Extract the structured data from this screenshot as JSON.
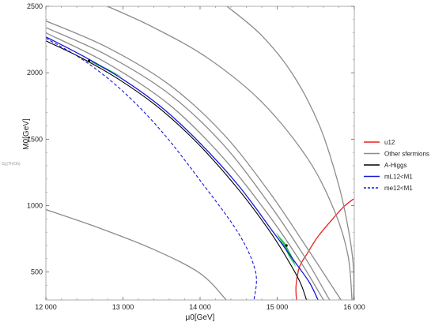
{
  "chart_data": {
    "type": "line",
    "xlabel": "μ0[GeV]",
    "ylabel": "M0[GeV]",
    "side_note": "Ωχ(Th/Ob)",
    "xlim": [
      12000,
      16000
    ],
    "ylim": [
      290,
      2500
    ],
    "xticks": [
      12000,
      13000,
      14000,
      15000,
      16000
    ],
    "xtick_labels": [
      "12 000",
      "13 000",
      "14 000",
      "15 000",
      "16 000"
    ],
    "yticks": [
      500,
      1000,
      1500,
      2000,
      2500
    ],
    "ytick_labels": [
      "500",
      "1000",
      "1500",
      "2000",
      "2500"
    ],
    "grid": false,
    "legend_position": "right",
    "legend": [
      {
        "label": "u12",
        "color": "#e8201c",
        "dash": false
      },
      {
        "label": "Other sfermions",
        "color": "#8c8c8c",
        "dash": false
      },
      {
        "label": "A-Higgs",
        "color": "#000000",
        "dash": false
      },
      {
        "label": "mL12<M1",
        "color": "#1818d8",
        "dash": false
      },
      {
        "label": "me12<M1",
        "color": "#1818d8",
        "dash": true
      }
    ],
    "series": [
      {
        "name": "u12",
        "color": "#e8201c",
        "dash": false,
        "width": 1.3,
        "points": [
          [
            15250,
            290
          ],
          [
            15245,
            400
          ],
          [
            15290,
            540
          ],
          [
            15390,
            640
          ],
          [
            15520,
            760
          ],
          [
            15690,
            880
          ],
          [
            15860,
            990
          ],
          [
            15990,
            1050
          ]
        ]
      },
      {
        "name": "Other sfermions",
        "color": "#8c8c8c",
        "dash": false,
        "width": 1.3,
        "points": [
          [
            12800,
            2500
          ],
          [
            13400,
            2340
          ],
          [
            14100,
            2110
          ],
          [
            14800,
            1780
          ],
          [
            15400,
            1350
          ],
          [
            15750,
            950
          ],
          [
            15920,
            620
          ],
          [
            15970,
            290
          ]
        ]
      },
      {
        "name": "Other sfermions",
        "color": "#8c8c8c",
        "dash": false,
        "width": 1.3,
        "points": [
          [
            14350,
            2500
          ],
          [
            14800,
            2280
          ],
          [
            15200,
            1990
          ],
          [
            15550,
            1600
          ],
          [
            15800,
            1150
          ],
          [
            15930,
            800
          ],
          [
            15990,
            530
          ],
          [
            15990,
            290
          ]
        ]
      },
      {
        "name": "Other sfermions",
        "color": "#8c8c8c",
        "dash": false,
        "width": 1.3,
        "points": [
          [
            12000,
            2390
          ],
          [
            12800,
            2190
          ],
          [
            13600,
            1910
          ],
          [
            14300,
            1540
          ],
          [
            14900,
            1100
          ],
          [
            15400,
            670
          ],
          [
            15760,
            350
          ],
          [
            15830,
            290
          ]
        ]
      },
      {
        "name": "Other sfermions",
        "color": "#8c8c8c",
        "dash": false,
        "width": 1.3,
        "points": [
          [
            12000,
            2340
          ],
          [
            12800,
            2130
          ],
          [
            13600,
            1840
          ],
          [
            14300,
            1460
          ],
          [
            14900,
            1010
          ],
          [
            15350,
            620
          ],
          [
            15640,
            330
          ],
          [
            15680,
            290
          ]
        ]
      },
      {
        "name": "Other sfermions",
        "color": "#8c8c8c",
        "dash": false,
        "width": 1.3,
        "points": [
          [
            12000,
            2300
          ],
          [
            12800,
            2070
          ],
          [
            13600,
            1760
          ],
          [
            14300,
            1360
          ],
          [
            14900,
            920
          ],
          [
            15300,
            580
          ],
          [
            15570,
            320
          ],
          [
            15600,
            290
          ]
        ]
      },
      {
        "name": "Other sfermions",
        "color": "#8c8c8c",
        "dash": false,
        "width": 1.3,
        "points": [
          [
            12000,
            970
          ],
          [
            12700,
            830
          ],
          [
            13400,
            670
          ],
          [
            14000,
            490
          ],
          [
            14340,
            290
          ]
        ]
      },
      {
        "name": "A-Higgs",
        "color": "#000000",
        "dash": false,
        "width": 1.1,
        "points": [
          [
            12000,
            2240
          ],
          [
            12500,
            2100
          ],
          [
            13000,
            1930
          ],
          [
            13500,
            1720
          ],
          [
            14000,
            1450
          ],
          [
            14500,
            1120
          ],
          [
            14900,
            810
          ],
          [
            15150,
            580
          ],
          [
            15300,
            420
          ],
          [
            15380,
            290
          ]
        ]
      },
      {
        "name": "mL12<M1",
        "color": "#1818d8",
        "dash": false,
        "width": 1.3,
        "points": [
          [
            12000,
            2270
          ],
          [
            12500,
            2120
          ],
          [
            13000,
            1950
          ],
          [
            13500,
            1740
          ],
          [
            14000,
            1470
          ],
          [
            14500,
            1150
          ],
          [
            14950,
            800
          ],
          [
            15250,
            560
          ],
          [
            15420,
            420
          ],
          [
            15530,
            290
          ]
        ]
      },
      {
        "name": "me12<M1",
        "color": "#1818d8",
        "dash": true,
        "width": 1.1,
        "points": [
          [
            12000,
            2260
          ],
          [
            12500,
            2090
          ],
          [
            13000,
            1860
          ],
          [
            13500,
            1560
          ],
          [
            14000,
            1190
          ],
          [
            14500,
            790
          ],
          [
            14720,
            500
          ],
          [
            14700,
            290
          ]
        ]
      }
    ],
    "regions": [
      {
        "color": "#1fbf3f",
        "points": [
          [
            14980,
            800
          ],
          [
            15100,
            720
          ],
          [
            15200,
            610
          ],
          [
            15260,
            510
          ],
          [
            15290,
            480
          ],
          [
            15240,
            540
          ],
          [
            15150,
            620
          ],
          [
            15080,
            700
          ],
          [
            14990,
            790
          ]
        ]
      },
      {
        "color": "#1fbf3f",
        "points": [
          [
            12580,
            2090
          ],
          [
            12800,
            2030
          ],
          [
            13000,
            1965
          ],
          [
            12820,
            2010
          ],
          [
            12600,
            2075
          ]
        ]
      }
    ],
    "markers": [
      {
        "color": "#000000",
        "points": [
          [
            15120,
            700
          ],
          [
            12560,
            2090
          ]
        ]
      }
    ]
  }
}
